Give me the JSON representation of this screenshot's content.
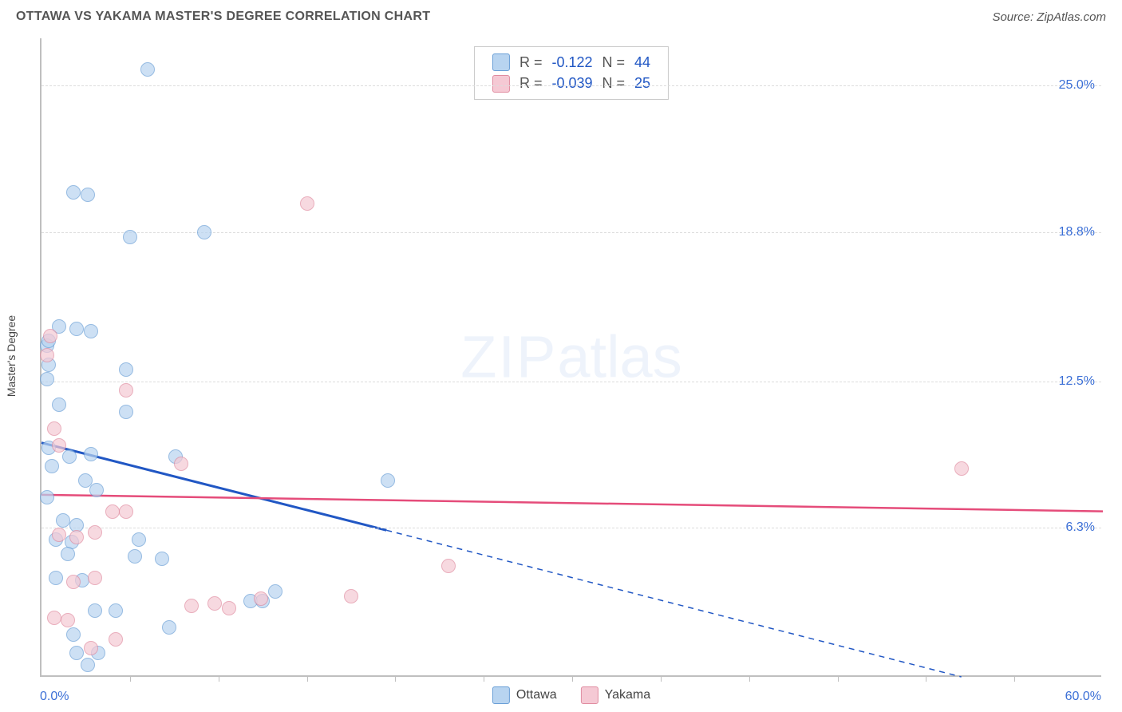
{
  "title": "OTTAWA VS YAKAMA MASTER'S DEGREE CORRELATION CHART",
  "source": "Source: ZipAtlas.com",
  "watermark_big": "ZIP",
  "watermark_small": "atlas",
  "chart": {
    "type": "scatter",
    "background_color": "#ffffff",
    "grid_color": "#dcdcdc",
    "axis_color": "#bfbfbf",
    "ylabel": "Master's Degree",
    "label_fontsize": 14,
    "xlim": [
      0,
      60
    ],
    "ylim": [
      0,
      27
    ],
    "x_ticks_minor": [
      5,
      10,
      15,
      20,
      25,
      30,
      35,
      40,
      45,
      50,
      55
    ],
    "y_ticks": [
      {
        "value": 6.3,
        "label": "6.3%"
      },
      {
        "value": 12.5,
        "label": "12.5%"
      },
      {
        "value": 18.8,
        "label": "18.8%"
      },
      {
        "value": 25.0,
        "label": "25.0%"
      }
    ],
    "x_lim_labels": {
      "min": "0.0%",
      "max": "60.0%"
    },
    "series": [
      {
        "name": "Ottawa",
        "r_label": "R =",
        "r_value": "-0.122",
        "n_label": "N =",
        "n_value": "44",
        "fill_color": "#b8d4f0",
        "stroke_color": "#6a9fd6",
        "line_color": "#2157c4",
        "marker_radius": 9,
        "marker_stroke_width": 1.5,
        "fill_opacity": 0.7,
        "trend_line_width": 3,
        "trend_solid": {
          "x1": 0,
          "y1": 9.9,
          "x2": 19.5,
          "y2": 6.2
        },
        "trend_dashed": {
          "x1": 19.5,
          "y1": 6.2,
          "x2": 52.0,
          "y2": 0.0
        },
        "points": [
          [
            6.0,
            25.7
          ],
          [
            1.8,
            20.5
          ],
          [
            2.6,
            20.4
          ],
          [
            5.0,
            18.6
          ],
          [
            9.2,
            18.8
          ],
          [
            1.0,
            14.8
          ],
          [
            2.0,
            14.7
          ],
          [
            2.8,
            14.6
          ],
          [
            0.3,
            14.0
          ],
          [
            0.4,
            14.2
          ],
          [
            0.4,
            13.2
          ],
          [
            0.3,
            12.6
          ],
          [
            4.8,
            13.0
          ],
          [
            1.0,
            11.5
          ],
          [
            4.8,
            11.2
          ],
          [
            0.4,
            9.7
          ],
          [
            1.6,
            9.3
          ],
          [
            2.8,
            9.4
          ],
          [
            7.6,
            9.3
          ],
          [
            0.6,
            8.9
          ],
          [
            2.5,
            8.3
          ],
          [
            19.6,
            8.3
          ],
          [
            0.3,
            7.6
          ],
          [
            3.1,
            7.9
          ],
          [
            1.2,
            6.6
          ],
          [
            2.0,
            6.4
          ],
          [
            0.8,
            5.8
          ],
          [
            1.7,
            5.7
          ],
          [
            5.5,
            5.8
          ],
          [
            1.5,
            5.2
          ],
          [
            5.3,
            5.1
          ],
          [
            6.8,
            5.0
          ],
          [
            0.8,
            4.2
          ],
          [
            2.3,
            4.1
          ],
          [
            11.8,
            3.2
          ],
          [
            12.5,
            3.2
          ],
          [
            13.2,
            3.6
          ],
          [
            3.0,
            2.8
          ],
          [
            4.2,
            2.8
          ],
          [
            7.2,
            2.1
          ],
          [
            1.8,
            1.8
          ],
          [
            2.0,
            1.0
          ],
          [
            3.2,
            1.0
          ],
          [
            2.6,
            0.5
          ]
        ]
      },
      {
        "name": "Yakama",
        "r_label": "R =",
        "r_value": "-0.039",
        "n_label": "N =",
        "n_value": "25",
        "fill_color": "#f5c9d4",
        "stroke_color": "#e08ca0",
        "line_color": "#e54c7a",
        "marker_radius": 9,
        "marker_stroke_width": 1.5,
        "fill_opacity": 0.7,
        "trend_line_width": 2.5,
        "trend_solid": {
          "x1": 0,
          "y1": 7.7,
          "x2": 60,
          "y2": 7.0
        },
        "points": [
          [
            15.0,
            20.0
          ],
          [
            0.5,
            14.4
          ],
          [
            0.3,
            13.6
          ],
          [
            4.8,
            12.1
          ],
          [
            0.7,
            10.5
          ],
          [
            1.0,
            9.8
          ],
          [
            7.9,
            9.0
          ],
          [
            52.0,
            8.8
          ],
          [
            4.0,
            7.0
          ],
          [
            4.8,
            7.0
          ],
          [
            1.0,
            6.0
          ],
          [
            2.0,
            5.9
          ],
          [
            3.0,
            6.1
          ],
          [
            23.0,
            4.7
          ],
          [
            17.5,
            3.4
          ],
          [
            1.8,
            4.0
          ],
          [
            3.0,
            4.2
          ],
          [
            8.5,
            3.0
          ],
          [
            9.8,
            3.1
          ],
          [
            10.6,
            2.9
          ],
          [
            12.4,
            3.3
          ],
          [
            0.7,
            2.5
          ],
          [
            1.5,
            2.4
          ],
          [
            2.8,
            1.2
          ],
          [
            4.2,
            1.6
          ]
        ]
      }
    ]
  }
}
